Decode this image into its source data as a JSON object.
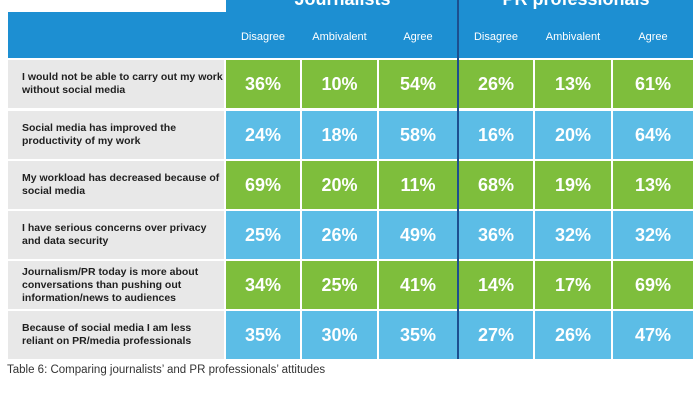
{
  "groups": [
    "Journalists",
    "PR professionals"
  ],
  "columns": [
    "Disagree",
    "Ambivalent",
    "Agree",
    "Disagree",
    "Ambivalent",
    "Agree"
  ],
  "rows": [
    {
      "label": "I would not be able to carry out my work without social media",
      "values": [
        "36%",
        "10%",
        "54%",
        "26%",
        "13%",
        "61%"
      ],
      "color": "#7ebe3c"
    },
    {
      "label": "Social media has improved the productivity of my work",
      "values": [
        "24%",
        "18%",
        "58%",
        "16%",
        "20%",
        "64%"
      ],
      "color": "#5cbde6"
    },
    {
      "label": "My workload has decreased because of social media",
      "values": [
        "69%",
        "20%",
        "11%",
        "68%",
        "19%",
        "13%"
      ],
      "color": "#7ebe3c"
    },
    {
      "label": "I have serious concerns over privacy and data security",
      "values": [
        "25%",
        "26%",
        "49%",
        "36%",
        "32%",
        "32%"
      ],
      "color": "#5cbde6"
    },
    {
      "label": "Journalism/PR  today is more about conversations than pushing out information/news to audiences",
      "values": [
        "34%",
        "25%",
        "41%",
        "14%",
        "17%",
        "69%"
      ],
      "color": "#7ebe3c"
    },
    {
      "label": "Because of social media I am less reliant on PR/media professionals",
      "values": [
        "35%",
        "30%",
        "35%",
        "27%",
        "26%",
        "47%"
      ],
      "color": "#5cbde6"
    }
  ],
  "caption": "Table 6: Comparing journalists’ and PR professionals’ attitudes"
}
